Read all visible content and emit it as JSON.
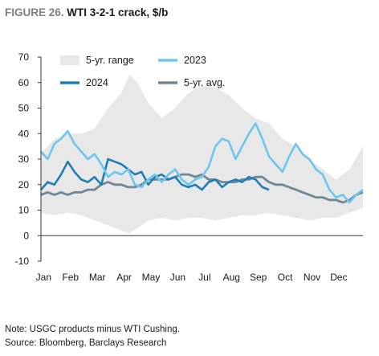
{
  "title": {
    "label": "FIGURE 26.",
    "text": "WTI 3-2-1 crack, $/b"
  },
  "note": "Note: USGC products minus WTI Cushing.",
  "source": "Source: Bloomberg, Barclays Research",
  "colors": {
    "range": "#e8e8e8",
    "y2023": "#6ec6ee",
    "y2024": "#1f7fb4",
    "avg": "#6f8796"
  },
  "chart_data": {
    "type": "line",
    "title": "WTI 3-2-1 crack, $/b",
    "xlabel": "",
    "ylabel": "",
    "ylim": [
      -10,
      70
    ],
    "yticks": [
      -10,
      0,
      10,
      20,
      30,
      40,
      50,
      60,
      70
    ],
    "xlim": [
      0,
      12
    ],
    "x_tick_labels": [
      "Jan",
      "Feb",
      "Mar",
      "Apr",
      "May",
      "Jun",
      "Jul",
      "Aug",
      "Sep",
      "Oct",
      "Nov",
      "Dec"
    ],
    "grid": false,
    "legend": [
      "5-yr. range",
      "2023",
      "2024",
      "5-yr. avg."
    ],
    "legend_position": "top",
    "series": [
      {
        "name": "5-yr. range",
        "kind": "band",
        "x": [
          0,
          0.5,
          1,
          1.5,
          2,
          2.5,
          3,
          3.3,
          3.6,
          4,
          4.5,
          5,
          5.5,
          6,
          6.5,
          7,
          7.5,
          8,
          8.5,
          9,
          9.5,
          10,
          10.5,
          11,
          11.5,
          12
        ],
        "low": [
          9,
          8,
          9,
          8,
          6,
          4,
          2,
          1,
          3,
          6,
          7,
          6,
          7,
          7,
          6,
          7,
          8,
          8,
          9,
          8,
          7,
          6,
          7,
          7,
          9,
          11
        ],
        "high": [
          32,
          38,
          40,
          40,
          42,
          50,
          56,
          63,
          60,
          52,
          46,
          50,
          56,
          59,
          58,
          55,
          50,
          46,
          44,
          38,
          35,
          30,
          26,
          22,
          26,
          35
        ]
      },
      {
        "name": "2023",
        "x": [
          0,
          0.25,
          0.5,
          0.75,
          1,
          1.25,
          1.5,
          1.75,
          2,
          2.25,
          2.5,
          2.75,
          3,
          3.25,
          3.5,
          3.75,
          4,
          4.25,
          4.5,
          4.75,
          5,
          5.25,
          5.5,
          5.75,
          6,
          6.25,
          6.5,
          6.75,
          7,
          7.25,
          7.5,
          7.75,
          8,
          8.25,
          8.5,
          8.75,
          9,
          9.25,
          9.5,
          9.75,
          10,
          10.25,
          10.5,
          10.75,
          11,
          11.25,
          11.5,
          11.75,
          12
        ],
        "values": [
          33,
          30,
          36,
          38,
          41,
          36,
          33,
          30,
          32,
          28,
          23,
          25,
          24,
          26,
          20,
          19,
          22,
          24,
          21,
          24,
          26,
          22,
          20,
          22,
          23,
          27,
          35,
          38,
          37,
          30,
          35,
          40,
          44,
          38,
          31,
          28,
          25,
          31,
          36,
          32,
          30,
          26,
          24,
          18,
          15,
          16,
          13,
          16,
          18
        ]
      },
      {
        "name": "2024",
        "x": [
          0,
          0.25,
          0.5,
          0.75,
          1,
          1.25,
          1.5,
          1.75,
          2,
          2.25,
          2.5,
          2.75,
          3,
          3.25,
          3.5,
          3.75,
          4,
          4.25,
          4.5,
          4.75,
          5,
          5.25,
          5.5,
          5.75,
          6,
          6.25,
          6.5,
          6.75,
          7,
          7.25,
          7.5,
          7.75,
          8,
          8.25,
          8.5
        ],
        "values": [
          18,
          21,
          20,
          24,
          29,
          25,
          22,
          21,
          23,
          20,
          30,
          29,
          28,
          26,
          24,
          25,
          20,
          23,
          24,
          22,
          23,
          20,
          19,
          20,
          18,
          21,
          22,
          19,
          21,
          22,
          21,
          23,
          22,
          19,
          18
        ]
      },
      {
        "name": "5-yr. avg.",
        "x": [
          0,
          0.25,
          0.5,
          0.75,
          1,
          1.25,
          1.5,
          1.75,
          2,
          2.25,
          2.5,
          2.75,
          3,
          3.25,
          3.5,
          3.75,
          4,
          4.25,
          4.5,
          4.75,
          5,
          5.25,
          5.5,
          5.75,
          6,
          6.25,
          6.5,
          6.75,
          7,
          7.25,
          7.5,
          7.75,
          8,
          8.25,
          8.5,
          8.75,
          9,
          9.25,
          9.5,
          9.75,
          10,
          10.25,
          10.5,
          10.75,
          11,
          11.25,
          11.5,
          11.75,
          12
        ],
        "values": [
          16,
          17,
          16,
          17,
          16,
          17,
          17,
          18,
          18,
          20,
          21,
          20,
          20,
          19,
          19,
          20,
          22,
          22,
          22,
          22,
          23,
          24,
          24,
          23,
          24,
          22,
          22,
          21,
          21,
          21,
          22,
          22,
          23,
          23,
          21,
          20,
          20,
          19,
          18,
          17,
          16,
          15,
          15,
          14,
          14,
          13,
          14,
          16,
          17
        ]
      }
    ]
  }
}
